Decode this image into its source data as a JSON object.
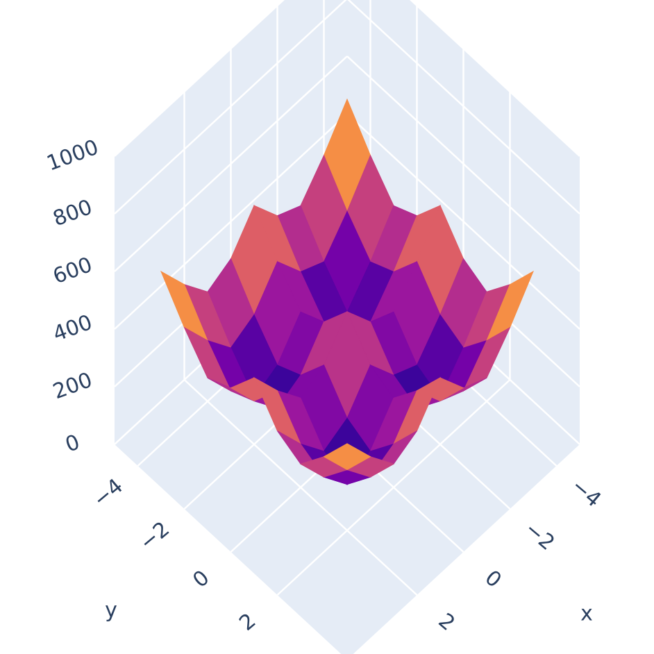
{
  "chart_data": {
    "type": "surface",
    "x": [
      -4,
      -3,
      -2,
      -1,
      0,
      1,
      2,
      3,
      4
    ],
    "y": [
      -4,
      -3,
      -2,
      -1,
      0,
      1,
      2,
      3,
      4
    ],
    "z": [
      [
        600,
        480,
        380,
        420,
        530,
        420,
        380,
        480,
        600
      ],
      [
        480,
        360,
        260,
        300,
        410,
        300,
        260,
        360,
        480
      ],
      [
        380,
        260,
        160,
        200,
        310,
        200,
        160,
        260,
        380
      ],
      [
        420,
        300,
        200,
        240,
        350,
        240,
        200,
        300,
        420
      ],
      [
        530,
        410,
        310,
        350,
        460,
        350,
        310,
        410,
        530
      ],
      [
        420,
        300,
        200,
        240,
        350,
        240,
        200,
        300,
        420
      ],
      [
        380,
        260,
        160,
        200,
        310,
        200,
        160,
        260,
        380
      ],
      [
        480,
        360,
        260,
        300,
        410,
        300,
        260,
        360,
        480
      ],
      [
        600,
        480,
        380,
        420,
        530,
        420,
        380,
        480,
        600
      ]
    ],
    "colorscale": [
      "#0d0887",
      "#46039f",
      "#7201a8",
      "#9c179e",
      "#bd3786",
      "#d8576b",
      "#ed7953",
      "#fb9f3a",
      "#fdca26",
      "#f0f921"
    ],
    "xlim": [
      -5,
      5
    ],
    "ylim": [
      -5,
      5
    ],
    "zlim": [
      0,
      1000
    ],
    "xticks": [
      {
        "value": -4,
        "label": "−4"
      },
      {
        "value": -2,
        "label": "−2"
      },
      0,
      2
    ],
    "yticks": [
      {
        "value": -4,
        "label": "−4"
      },
      {
        "value": -2,
        "label": "−2"
      },
      0,
      2
    ],
    "zticks": [
      0,
      200,
      400,
      600,
      800,
      1000
    ],
    "xlabel": "x",
    "ylabel": "y",
    "grid": true
  }
}
